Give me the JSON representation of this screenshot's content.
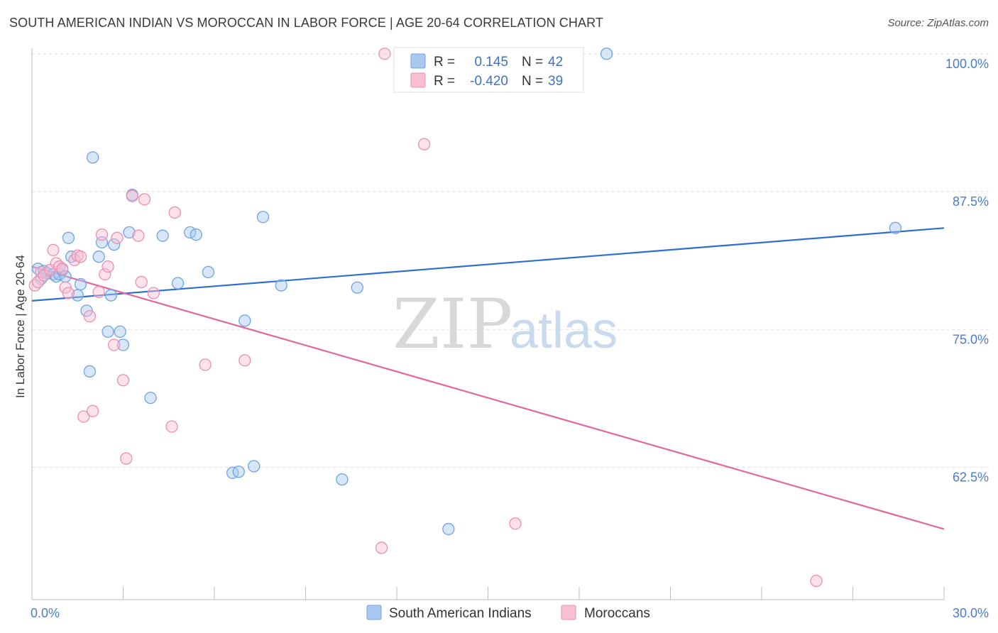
{
  "header": {
    "title": "SOUTH AMERICAN INDIAN VS MOROCCAN IN LABOR FORCE | AGE 20-64 CORRELATION CHART",
    "source": "Source: ZipAtlas.com"
  },
  "watermark": {
    "zip": "ZIP",
    "atlas": "atlas"
  },
  "legend": {
    "rows": [
      {
        "r_label": "R =",
        "r_value": "0.145",
        "n_label": "N =",
        "n_value": "42",
        "color": "#6ea3e6"
      },
      {
        "r_label": "R =",
        "r_value": "-0.420",
        "n_label": "N =",
        "n_value": "39",
        "color": "#ef8db0"
      }
    ]
  },
  "colors": {
    "blue_fill": "#a9c8f0",
    "blue_stroke": "#6ea3e6",
    "blue_line": "#2f6fcf",
    "pink_fill": "#f6bfd2",
    "pink_stroke": "#ef8db0",
    "pink_line": "#e0689a",
    "grid": "#dddddd",
    "axis": "#bbbbbb"
  },
  "chart_data": {
    "type": "scatter",
    "title": "SOUTH AMERICAN INDIAN VS MOROCCAN IN LABOR FORCE | AGE 20-64 CORRELATION CHART",
    "xlabel": "",
    "ylabel": "In Labor Force | Age 20-64",
    "xlim": [
      0,
      30
    ],
    "ylim": [
      50.5,
      100.5
    ],
    "x_tick_labels": [
      "0.0%",
      "30.0%"
    ],
    "y_ticks": [
      100.0,
      87.5,
      75.0,
      62.5
    ],
    "y_tick_labels": [
      "100.0%",
      "87.5%",
      "75.0%",
      "62.5%"
    ],
    "grid": true,
    "legend_position": "top-center",
    "series": [
      {
        "name": "South American Indians",
        "color": "#6ea3e6",
        "trend": {
          "x": [
            0,
            30
          ],
          "y": [
            77.6,
            84.2
          ]
        },
        "points": [
          [
            0.2,
            80.5
          ],
          [
            0.4,
            80.3
          ],
          [
            0.5,
            80.1
          ],
          [
            0.7,
            80.0
          ],
          [
            0.8,
            79.8
          ],
          [
            0.9,
            80.0
          ],
          [
            1.0,
            80.4
          ],
          [
            1.1,
            79.8
          ],
          [
            1.2,
            83.3
          ],
          [
            1.3,
            81.6
          ],
          [
            1.5,
            78.1
          ],
          [
            1.6,
            79.1
          ],
          [
            1.8,
            76.7
          ],
          [
            1.9,
            71.2
          ],
          [
            2.0,
            90.6
          ],
          [
            2.2,
            81.6
          ],
          [
            2.3,
            82.9
          ],
          [
            2.5,
            74.8
          ],
          [
            2.6,
            78.1
          ],
          [
            2.7,
            82.7
          ],
          [
            2.9,
            74.8
          ],
          [
            3.0,
            73.6
          ],
          [
            3.2,
            83.8
          ],
          [
            3.3,
            87.2
          ],
          [
            3.9,
            68.8
          ],
          [
            4.3,
            83.5
          ],
          [
            4.8,
            79.2
          ],
          [
            5.2,
            83.8
          ],
          [
            5.4,
            83.6
          ],
          [
            5.8,
            80.2
          ],
          [
            6.6,
            62.0
          ],
          [
            6.8,
            62.1
          ],
          [
            7.0,
            75.8
          ],
          [
            7.3,
            62.6
          ],
          [
            7.6,
            85.2
          ],
          [
            8.2,
            79.0
          ],
          [
            10.2,
            61.4
          ],
          [
            10.7,
            78.8
          ],
          [
            13.7,
            56.9
          ],
          [
            18.9,
            100.0
          ],
          [
            28.4,
            84.2
          ],
          [
            0.3,
            79.6
          ]
        ]
      },
      {
        "name": "Moroccans",
        "color": "#ef8db0",
        "trend": {
          "x": [
            0,
            30
          ],
          "y": [
            80.7,
            56.9
          ]
        },
        "points": [
          [
            0.1,
            79.0
          ],
          [
            0.2,
            79.3
          ],
          [
            0.3,
            80.2
          ],
          [
            0.4,
            79.9
          ],
          [
            0.6,
            80.4
          ],
          [
            0.7,
            82.2
          ],
          [
            0.8,
            81.0
          ],
          [
            0.9,
            80.7
          ],
          [
            1.0,
            80.5
          ],
          [
            1.1,
            78.8
          ],
          [
            1.2,
            78.3
          ],
          [
            1.4,
            81.3
          ],
          [
            1.5,
            81.7
          ],
          [
            1.6,
            81.6
          ],
          [
            1.7,
            67.1
          ],
          [
            1.9,
            76.2
          ],
          [
            2.0,
            67.6
          ],
          [
            2.2,
            78.4
          ],
          [
            2.3,
            83.6
          ],
          [
            2.4,
            80.0
          ],
          [
            2.5,
            80.7
          ],
          [
            2.7,
            73.6
          ],
          [
            2.8,
            83.3
          ],
          [
            3.0,
            70.4
          ],
          [
            3.1,
            63.3
          ],
          [
            3.3,
            87.1
          ],
          [
            3.5,
            83.5
          ],
          [
            3.7,
            86.8
          ],
          [
            4.0,
            78.3
          ],
          [
            4.6,
            66.2
          ],
          [
            4.7,
            85.6
          ],
          [
            5.7,
            71.8
          ],
          [
            7.0,
            72.2
          ],
          [
            11.5,
            55.2
          ],
          [
            11.6,
            100.0
          ],
          [
            12.9,
            91.8
          ],
          [
            15.9,
            57.4
          ],
          [
            25.8,
            52.2
          ],
          [
            3.6,
            79.3
          ]
        ]
      }
    ]
  }
}
